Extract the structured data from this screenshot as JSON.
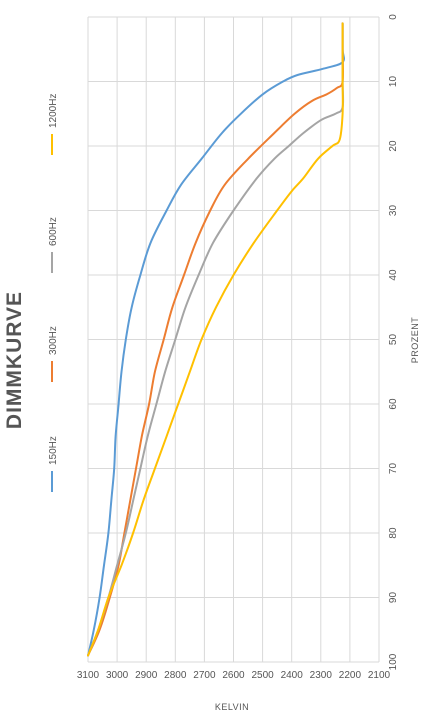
{
  "chart_data": {
    "type": "line",
    "title": "DIMMKURVE",
    "xlabel": "PROZENT",
    "ylabel": "KELVIN",
    "xlim": [
      0,
      100
    ],
    "ylim": [
      2100,
      3100
    ],
    "x_ticks": [
      0,
      10,
      20,
      30,
      40,
      50,
      60,
      70,
      80,
      90,
      100
    ],
    "y_ticks": [
      2100,
      2200,
      2300,
      2400,
      2500,
      2600,
      2700,
      2800,
      2900,
      3000,
      3100
    ],
    "grid": true,
    "legend_position": "top",
    "rotated": "chart rotated 90 degrees clockwise",
    "series": [
      {
        "name": "150Hz",
        "color": "#5b9bd5",
        "x": [
          1,
          5,
          7,
          8,
          9,
          10,
          12,
          15,
          18,
          22,
          26,
          30,
          35,
          40,
          45,
          50,
          55,
          60,
          65,
          70,
          75,
          80,
          85,
          90,
          95,
          99
        ],
        "y": [
          2225,
          2225,
          2225,
          2290,
          2380,
          2430,
          2500,
          2575,
          2640,
          2710,
          2780,
          2830,
          2885,
          2920,
          2950,
          2970,
          2985,
          2995,
          3005,
          3010,
          3020,
          3030,
          3045,
          3060,
          3080,
          3100
        ]
      },
      {
        "name": "300Hz",
        "color": "#ed7d31",
        "x": [
          1,
          5,
          10,
          11,
          12,
          13,
          15,
          18,
          22,
          26,
          30,
          35,
          40,
          45,
          50,
          55,
          60,
          65,
          70,
          75,
          80,
          85,
          90,
          95,
          99
        ],
        "y": [
          2225,
          2225,
          2225,
          2245,
          2280,
          2330,
          2390,
          2460,
          2550,
          2630,
          2680,
          2730,
          2770,
          2810,
          2840,
          2870,
          2890,
          2915,
          2935,
          2955,
          2975,
          2995,
          3025,
          3060,
          3100
        ]
      },
      {
        "name": "600Hz",
        "color": "#a5a5a5",
        "x": [
          1,
          5,
          10,
          14,
          15,
          16,
          18,
          20,
          22,
          25,
          30,
          35,
          40,
          45,
          50,
          55,
          60,
          65,
          70,
          75,
          80,
          85,
          90,
          95,
          99
        ],
        "y": [
          2225,
          2225,
          2225,
          2225,
          2250,
          2300,
          2360,
          2410,
          2460,
          2520,
          2600,
          2670,
          2720,
          2765,
          2800,
          2835,
          2865,
          2895,
          2920,
          2945,
          2970,
          3000,
          3030,
          3065,
          3100
        ]
      },
      {
        "name": "1200Hz",
        "color": "#ffc000",
        "x": [
          1,
          5,
          10,
          15,
          19,
          20,
          22,
          25,
          27,
          30,
          35,
          40,
          45,
          50,
          55,
          60,
          65,
          70,
          75,
          80,
          85,
          90,
          95,
          99
        ],
        "y": [
          2225,
          2225,
          2225,
          2225,
          2235,
          2260,
          2310,
          2360,
          2400,
          2450,
          2530,
          2600,
          2660,
          2710,
          2750,
          2790,
          2830,
          2870,
          2910,
          2945,
          2985,
          3030,
          3065,
          3100
        ]
      }
    ]
  }
}
